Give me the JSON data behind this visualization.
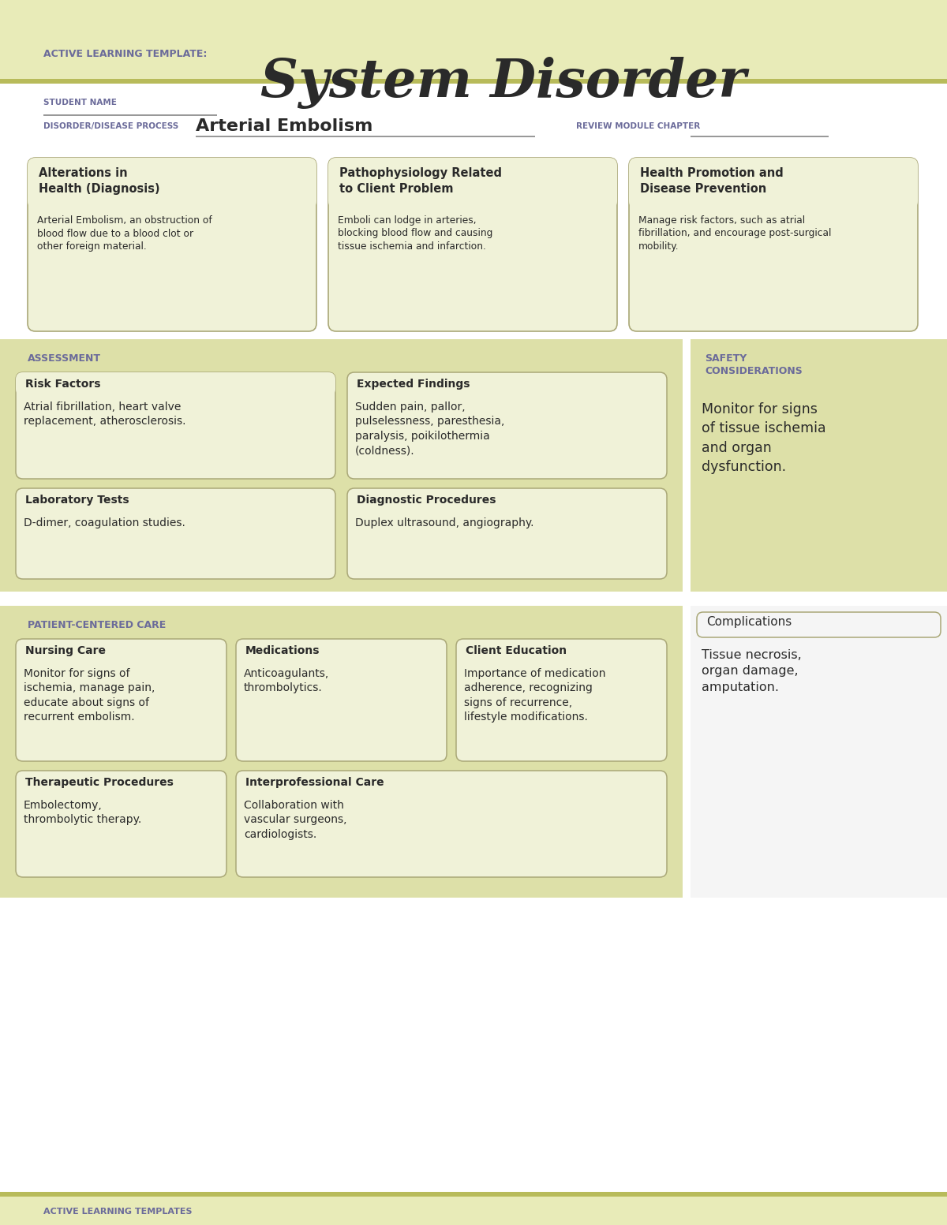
{
  "bg_header": "#e8ebb8",
  "bg_white": "#ffffff",
  "bg_section": "#dde0a8",
  "bg_card": "#f0f2d8",
  "bg_safety": "#dde0a8",
  "bg_complications": "#f5f5f5",
  "border_color": "#aaa878",
  "accent_color": "#6b6b9a",
  "text_dark": "#2a2a2a",
  "olive_line": "#b8bb5a",
  "title_main": "System Disorder",
  "title_sub": "ACTIVE LEARNING TEMPLATE:",
  "student_label": "STUDENT NAME",
  "disorder_label": "DISORDER/DISEASE PROCESS",
  "disorder_value": "Arterial Embolism",
  "review_label": "REVIEW MODULE CHAPTER",
  "footer_text": "ACTIVE LEARNING TEMPLATES",
  "section1_title": "Alterations in\nHealth (Diagnosis)",
  "section1_body": "Arterial Embolism, an obstruction of\nblood flow due to a blood clot or\nother foreign material.",
  "section2_title": "Pathophysiology Related\nto Client Problem",
  "section2_body": "Emboli can lodge in arteries,\nblocking blood flow and causing\ntissue ischemia and infarction.",
  "section3_title": "Health Promotion and\nDisease Prevention",
  "section3_body": "Manage risk factors, such as atrial\nfibrillation, and encourage post-surgical\nmobility.",
  "assess_label": "ASSESSMENT",
  "safety_label": "SAFETY\nCONSIDERATIONS",
  "safety_body": "Monitor for signs\nof tissue ischemia\nand organ\ndysfunction.",
  "risk_title": "Risk Factors",
  "risk_body": "Atrial fibrillation, heart valve\nreplacement, atherosclerosis.",
  "expected_title": "Expected Findings",
  "expected_body": "Sudden pain, pallor,\npulselessness, paresthesia,\nparalysis, poikilothermia\n(coldness).",
  "lab_title": "Laboratory Tests",
  "lab_body": "D-dimer, coagulation studies.",
  "diag_title": "Diagnostic Procedures",
  "diag_body": "Duplex ultrasound, angiography.",
  "pcc_label": "PATIENT-CENTERED CARE",
  "complications_title": "Complications",
  "complications_body": "Tissue necrosis,\norgan damage,\namputation.",
  "nursing_title": "Nursing Care",
  "nursing_body": "Monitor for signs of\nischemia, manage pain,\neducate about signs of\nrecurrent embolism.",
  "meds_title": "Medications",
  "meds_body": "Anticoagulants,\nthrombolytics.",
  "client_title": "Client Education",
  "client_body": "Importance of medication\nadherence, recognizing\nsigns of recurrence,\nlifestyle modifications.",
  "therapeutic_title": "Therapeutic Procedures",
  "therapeutic_body": "Embolectomy,\nthrombolytic therapy.",
  "interpro_title": "Interprofessional Care",
  "interpro_body": "Collaboration with\nvascular surgeons,\ncardiologists."
}
